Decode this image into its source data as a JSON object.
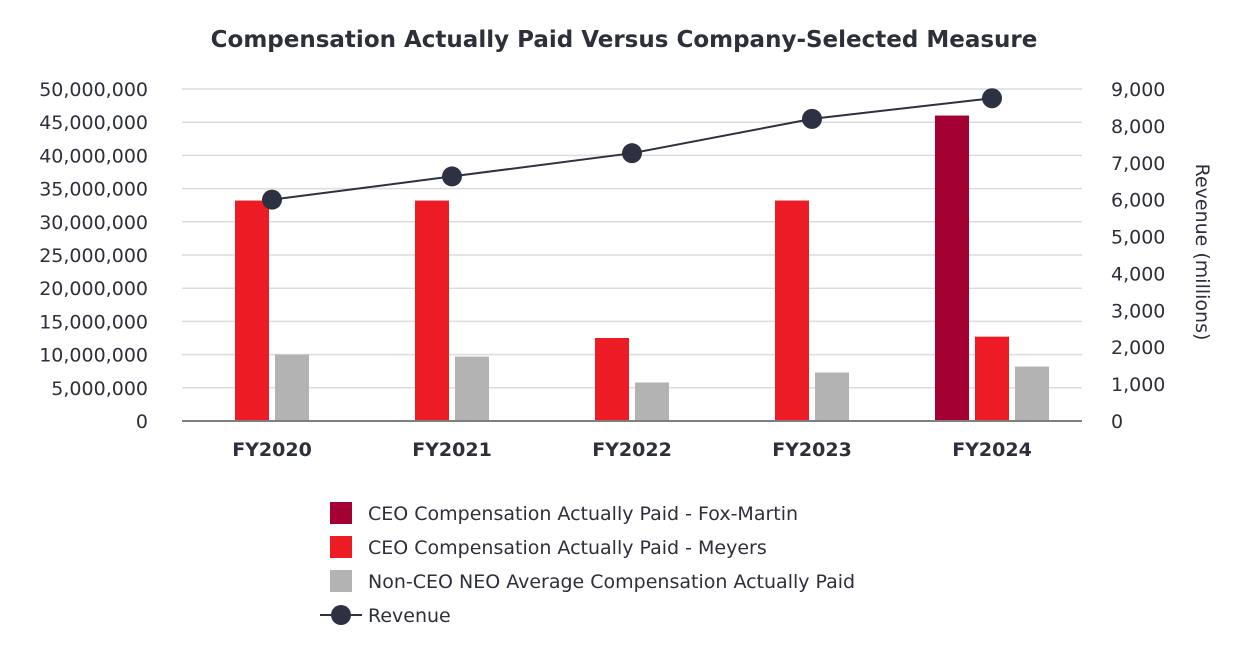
{
  "chart_data": {
    "type": "bar",
    "title": "Compensation Actually Paid Versus Company-Selected Measure",
    "categories": [
      "FY2020",
      "FY2021",
      "FY2022",
      "FY2023",
      "FY2024"
    ],
    "ylim": [
      0,
      50000000
    ],
    "y_ticks": [
      "0",
      "5,000,000",
      "10,000,000",
      "15,000,000",
      "20,000,000",
      "25,000,000",
      "30,000,000",
      "35,000,000",
      "40,000,000",
      "45,000,000",
      "50,000,000"
    ],
    "y2label": "Revenue (millions)",
    "y2lim": [
      0,
      9000
    ],
    "y2_ticks": [
      "0",
      "1,000",
      "2,000",
      "3,000",
      "4,000",
      "5,000",
      "6,000",
      "7,000",
      "8,000",
      "9,000"
    ],
    "grid": true,
    "legend_position": "bottom",
    "series": [
      {
        "name": "CEO Compensation Actually Paid - Fox-Martin",
        "type": "bar",
        "axis": "left",
        "color": "#a50034",
        "values": [
          null,
          null,
          null,
          null,
          46000000
        ]
      },
      {
        "name": "CEO Compensation Actually Paid - Meyers",
        "type": "bar",
        "axis": "left",
        "color": "#ed1c24",
        "values": [
          33200000,
          33200000,
          12500000,
          33200000,
          12700000
        ]
      },
      {
        "name": "Non-CEO NEO Average Compensation Actually Paid",
        "type": "bar",
        "axis": "left",
        "color": "#b3b3b3",
        "values": [
          10000000,
          9700000,
          5800000,
          7300000,
          8200000
        ]
      },
      {
        "name": "Revenue",
        "type": "line",
        "axis": "right",
        "color": "#2d3142",
        "values": [
          6000,
          6630,
          7260,
          8190,
          8750
        ]
      }
    ]
  }
}
